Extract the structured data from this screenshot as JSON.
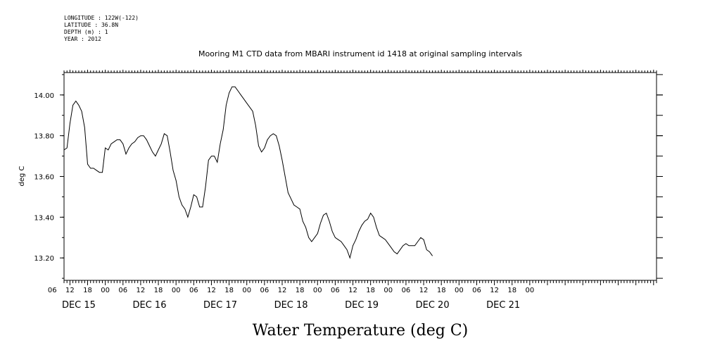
{
  "meta": {
    "longitude": "LONGITUDE : 122W(-122)",
    "latitude": "LATITUDE : 36.8N",
    "depth": "DEPTH (m) : 1",
    "year": "YEAR : 2012"
  },
  "chart_data": {
    "type": "line",
    "title": "Mooring M1 CTD data from MBARI instrument id 1418 at original sampling intervals",
    "xlabel": "Water Temperature (deg C)",
    "ylabel": "deg C",
    "ylim": [
      13.09,
      14.11
    ],
    "y_ticks": [
      "14.00",
      "13.80",
      "13.60",
      "13.40",
      "13.20"
    ],
    "y_tick_values": [
      14.0,
      13.8,
      13.6,
      13.4,
      13.2
    ],
    "x_unit": "hours since Dec 15 00:00",
    "xlim": [
      -14,
      187
    ],
    "hour_labels": [
      "06",
      "12",
      "18",
      "00",
      "06",
      "12",
      "18",
      "00",
      "06",
      "12",
      "18",
      "00",
      "06",
      "12",
      "18",
      "00",
      "06",
      "12",
      "18",
      "00",
      "06",
      "12",
      "18",
      "00",
      "06",
      "12",
      "18",
      "00"
    ],
    "hour_label_x": [
      -18,
      -12,
      -6,
      0,
      6,
      12,
      18,
      24,
      30,
      36,
      42,
      48,
      54,
      60,
      66,
      72,
      78,
      84,
      90,
      96,
      102,
      108,
      114,
      120,
      126,
      132,
      138,
      144
    ],
    "day_labels": [
      "DEC 15",
      "DEC 16",
      "DEC 17",
      "DEC 18",
      "DEC 19",
      "DEC 20",
      "DEC 21"
    ],
    "day_label_x": [
      -9,
      15,
      39,
      63,
      87,
      111,
      135
    ],
    "series": [
      {
        "points": [
          [
            -14,
            13.73
          ],
          [
            -13,
            13.74
          ],
          [
            -12,
            13.86
          ],
          [
            -11,
            13.95
          ],
          [
            -10,
            13.97
          ],
          [
            -9,
            13.95
          ],
          [
            -8,
            13.92
          ],
          [
            -7,
            13.84
          ],
          [
            -6,
            13.66
          ],
          [
            -5,
            13.64
          ],
          [
            -4,
            13.64
          ],
          [
            -3,
            13.63
          ],
          [
            -2,
            13.62
          ],
          [
            -1,
            13.62
          ],
          [
            0,
            13.74
          ],
          [
            1,
            13.73
          ],
          [
            2,
            13.76
          ],
          [
            3,
            13.77
          ],
          [
            4,
            13.78
          ],
          [
            5,
            13.78
          ],
          [
            6,
            13.76
          ],
          [
            7,
            13.71
          ],
          [
            8,
            13.74
          ],
          [
            9,
            13.76
          ],
          [
            10,
            13.77
          ],
          [
            11,
            13.79
          ],
          [
            12,
            13.8
          ],
          [
            13,
            13.8
          ],
          [
            14,
            13.78
          ],
          [
            15,
            13.75
          ],
          [
            16,
            13.72
          ],
          [
            17,
            13.7
          ],
          [
            18,
            13.73
          ],
          [
            19,
            13.76
          ],
          [
            20,
            13.81
          ],
          [
            21,
            13.8
          ],
          [
            22,
            13.72
          ],
          [
            23,
            13.63
          ],
          [
            24,
            13.58
          ],
          [
            25,
            13.5
          ],
          [
            26,
            13.46
          ],
          [
            27,
            13.44
          ],
          [
            28,
            13.4
          ],
          [
            29,
            13.45
          ],
          [
            30,
            13.51
          ],
          [
            31,
            13.5
          ],
          [
            32,
            13.45
          ],
          [
            33,
            13.45
          ],
          [
            34,
            13.55
          ],
          [
            35,
            13.68
          ],
          [
            36,
            13.7
          ],
          [
            37,
            13.7
          ],
          [
            38,
            13.67
          ],
          [
            39,
            13.76
          ],
          [
            40,
            13.83
          ],
          [
            41,
            13.95
          ],
          [
            42,
            14.01
          ],
          [
            43,
            14.04
          ],
          [
            44,
            14.04
          ],
          [
            45,
            14.02
          ],
          [
            46,
            14.0
          ],
          [
            47,
            13.98
          ],
          [
            48,
            13.96
          ],
          [
            49,
            13.94
          ],
          [
            50,
            13.92
          ],
          [
            51,
            13.85
          ],
          [
            52,
            13.75
          ],
          [
            53,
            13.72
          ],
          [
            54,
            13.74
          ],
          [
            55,
            13.78
          ],
          [
            56,
            13.8
          ],
          [
            57,
            13.81
          ],
          [
            58,
            13.8
          ],
          [
            59,
            13.75
          ],
          [
            60,
            13.68
          ],
          [
            61,
            13.6
          ],
          [
            62,
            13.52
          ],
          [
            63,
            13.49
          ],
          [
            64,
            13.46
          ],
          [
            65,
            13.45
          ],
          [
            66,
            13.44
          ],
          [
            67,
            13.38
          ],
          [
            68,
            13.35
          ],
          [
            69,
            13.3
          ],
          [
            70,
            13.28
          ],
          [
            71,
            13.3
          ],
          [
            72,
            13.32
          ],
          [
            73,
            13.37
          ],
          [
            74,
            13.41
          ],
          [
            75,
            13.42
          ],
          [
            76,
            13.38
          ],
          [
            77,
            13.33
          ],
          [
            78,
            13.3
          ],
          [
            79,
            13.29
          ],
          [
            80,
            13.28
          ],
          [
            81,
            13.26
          ],
          [
            82,
            13.24
          ],
          [
            83,
            13.2
          ],
          [
            84,
            13.26
          ],
          [
            85,
            13.29
          ],
          [
            86,
            13.33
          ],
          [
            87,
            13.36
          ],
          [
            88,
            13.38
          ],
          [
            89,
            13.39
          ],
          [
            90,
            13.42
          ],
          [
            91,
            13.4
          ],
          [
            92,
            13.35
          ],
          [
            93,
            13.31
          ],
          [
            94,
            13.3
          ],
          [
            95,
            13.29
          ],
          [
            96,
            13.27
          ],
          [
            97,
            13.25
          ],
          [
            98,
            13.23
          ],
          [
            99,
            13.22
          ],
          [
            100,
            13.24
          ],
          [
            101,
            13.26
          ],
          [
            102,
            13.27
          ],
          [
            103,
            13.26
          ],
          [
            104,
            13.26
          ],
          [
            105,
            13.26
          ],
          [
            106,
            13.28
          ],
          [
            107,
            13.3
          ],
          [
            108,
            13.29
          ],
          [
            109,
            13.24
          ],
          [
            110,
            13.23
          ],
          [
            111,
            13.21
          ]
        ]
      }
    ]
  }
}
